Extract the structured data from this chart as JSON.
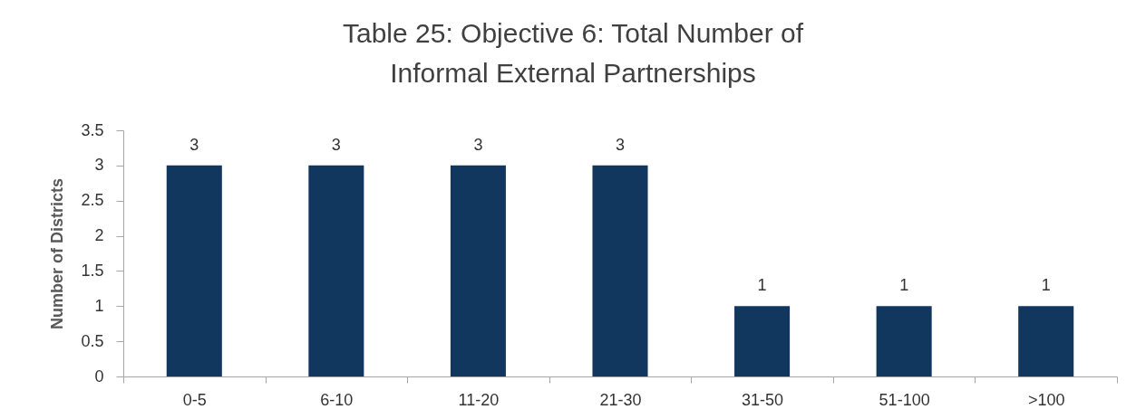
{
  "chart_data": {
    "type": "bar",
    "title": "Table 25: Objective 6: Total Number of Informal External Partnerships",
    "ylabel": "Number of Districts",
    "categories": [
      "0-5",
      "6-10",
      "11-20",
      "21-30",
      "31-50",
      "51-100",
      ">100"
    ],
    "values": [
      3,
      3,
      3,
      3,
      1,
      1,
      1
    ],
    "color": "#12375f",
    "ylim": [
      0,
      3.5
    ],
    "yticks": [
      0,
      0.5,
      1,
      1.5,
      2,
      2.5,
      3,
      3.5
    ],
    "grid": false,
    "data_labels": true
  }
}
